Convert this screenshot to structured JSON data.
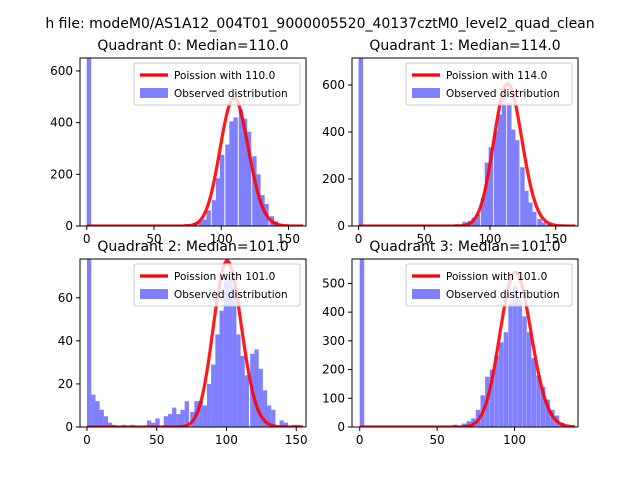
{
  "figure": {
    "suptitle": "h file: modeM0/AS1A12_004T01_9000005520_40137cztM0_level2_quad_clean"
  },
  "colors": {
    "poisson": "#ff0000",
    "observed": "#8080ff",
    "axis": "#000000"
  },
  "chart_data": [
    {
      "type": "bar",
      "title": "Quadrant 0: Median=110.0",
      "xlim": [
        -5,
        163
      ],
      "ylim": [
        0,
        650
      ],
      "xticks": [
        0,
        50,
        100,
        150
      ],
      "yticks": [
        0,
        200,
        400,
        600
      ],
      "bin_width": 3.3,
      "legend": {
        "position": "top-right",
        "poisson_label": "Poission with 110.0",
        "observed_label": "Observed distribution"
      },
      "poisson_mean": 110,
      "hist": [
        [
          0,
          650
        ],
        [
          73,
          8
        ],
        [
          79,
          12
        ],
        [
          83,
          18
        ],
        [
          86,
          25
        ],
        [
          89,
          60
        ],
        [
          93,
          100
        ],
        [
          96,
          185
        ],
        [
          99,
          275
        ],
        [
          103,
          315
        ],
        [
          106,
          405
        ],
        [
          109,
          420
        ],
        [
          113,
          450
        ],
        [
          116,
          415
        ],
        [
          119,
          365
        ],
        [
          123,
          270
        ],
        [
          126,
          200
        ],
        [
          129,
          120
        ],
        [
          132,
          85
        ],
        [
          136,
          38
        ],
        [
          139,
          18
        ],
        [
          143,
          8
        ]
      ]
    },
    {
      "type": "bar",
      "title": "Quadrant 1: Median=114.0",
      "xlim": [
        -5,
        167
      ],
      "ylim": [
        0,
        715
      ],
      "xticks": [
        0,
        50,
        100,
        150
      ],
      "yticks": [
        0,
        200,
        400,
        600
      ],
      "bin_width": 3.4,
      "legend": {
        "position": "top-right",
        "poisson_label": "Poission with 114.0",
        "observed_label": "Observed distribution"
      },
      "poisson_mean": 114,
      "hist": [
        [
          0,
          715
        ],
        [
          73,
          8
        ],
        [
          79,
          18
        ],
        [
          83,
          22
        ],
        [
          86,
          35
        ],
        [
          89,
          50
        ],
        [
          93,
          120
        ],
        [
          96,
          270
        ],
        [
          99,
          335
        ],
        [
          103,
          405
        ],
        [
          106,
          475
        ],
        [
          109,
          550
        ],
        [
          113,
          525
        ],
        [
          116,
          410
        ],
        [
          119,
          365
        ],
        [
          123,
          250
        ],
        [
          126,
          150
        ],
        [
          129,
          100
        ],
        [
          132,
          60
        ],
        [
          136,
          30
        ],
        [
          139,
          15
        ],
        [
          143,
          8
        ]
      ]
    },
    {
      "type": "bar",
      "title": "Quadrant 2: Median=101.0",
      "xlim": [
        -5,
        157
      ],
      "ylim": [
        0,
        78
      ],
      "xticks": [
        0,
        50,
        100,
        150
      ],
      "yticks": [
        0,
        20,
        40,
        60
      ],
      "bin_width": 3.1,
      "legend": {
        "position": "top-right",
        "poisson_label": "Poission with 101.0",
        "observed_label": "Observed distribution"
      },
      "poisson_mean": 101,
      "hist": [
        [
          0,
          78
        ],
        [
          3,
          15
        ],
        [
          6,
          12
        ],
        [
          9,
          8
        ],
        [
          12,
          5
        ],
        [
          15,
          2
        ],
        [
          18,
          1
        ],
        [
          25,
          1
        ],
        [
          31,
          1
        ],
        [
          43,
          3
        ],
        [
          46,
          2
        ],
        [
          49,
          4
        ],
        [
          55,
          5
        ],
        [
          58,
          6
        ],
        [
          61,
          9
        ],
        [
          64,
          6
        ],
        [
          67,
          8
        ],
        [
          70,
          12
        ],
        [
          74,
          7
        ],
        [
          77,
          12
        ],
        [
          80,
          12
        ],
        [
          83,
          10
        ],
        [
          86,
          20
        ],
        [
          89,
          29
        ],
        [
          92,
          43
        ],
        [
          95,
          54
        ],
        [
          98,
          68
        ],
        [
          101,
          70
        ],
        [
          104,
          65
        ],
        [
          107,
          43
        ],
        [
          110,
          33
        ],
        [
          113,
          24
        ],
        [
          117,
          34
        ],
        [
          120,
          36
        ],
        [
          123,
          27
        ],
        [
          126,
          17
        ],
        [
          129,
          10
        ],
        [
          132,
          8
        ],
        [
          138,
          3
        ],
        [
          141,
          2
        ],
        [
          147,
          1
        ],
        [
          150,
          1
        ]
      ]
    },
    {
      "type": "bar",
      "title": "Quadrant 3: Median=101.0",
      "xlim": [
        -5,
        141
      ],
      "ylim": [
        0,
        585
      ],
      "xticks": [
        0,
        50,
        100
      ],
      "yticks": [
        0,
        100,
        200,
        300,
        400,
        500
      ],
      "bin_width": 2.9,
      "legend": {
        "position": "top-right",
        "poisson_label": "Poission with 101.0",
        "observed_label": "Observed distribution"
      },
      "poisson_mean": 101,
      "hist": [
        [
          0,
          585
        ],
        [
          60,
          8
        ],
        [
          66,
          12
        ],
        [
          69,
          20
        ],
        [
          72,
          30
        ],
        [
          75,
          60
        ],
        [
          78,
          110
        ],
        [
          81,
          175
        ],
        [
          84,
          200
        ],
        [
          87,
          250
        ],
        [
          90,
          295
        ],
        [
          93,
          330
        ],
        [
          96,
          430
        ],
        [
          99,
          490
        ],
        [
          102,
          440
        ],
        [
          105,
          385
        ],
        [
          108,
          330
        ],
        [
          111,
          240
        ],
        [
          114,
          180
        ],
        [
          117,
          140
        ],
        [
          120,
          95
        ],
        [
          123,
          60
        ],
        [
          126,
          40
        ],
        [
          129,
          15
        ]
      ]
    }
  ]
}
